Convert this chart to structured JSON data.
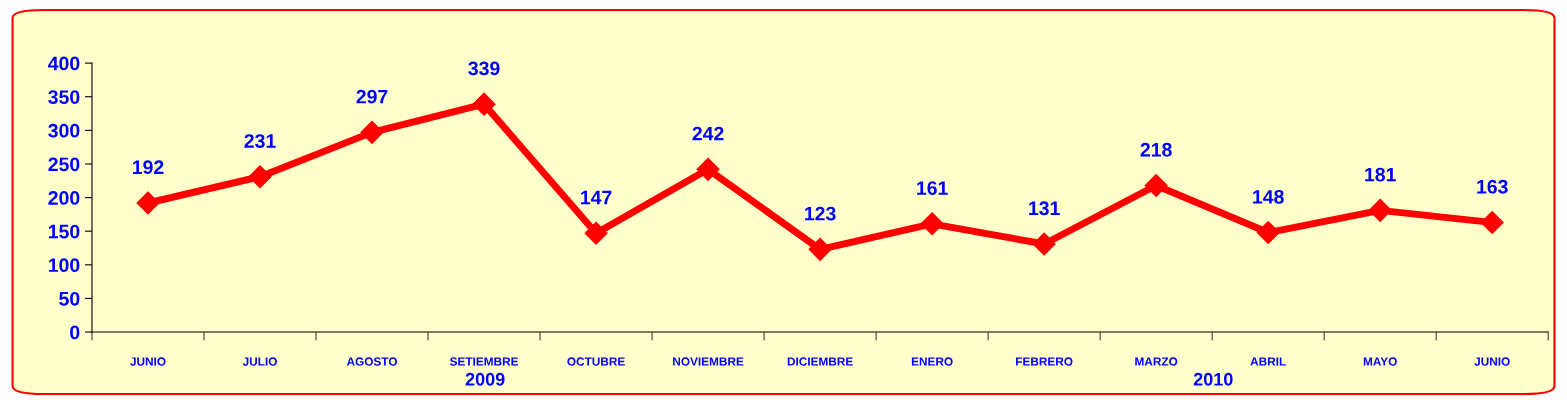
{
  "chart_data": {
    "type": "line",
    "categories": [
      "JUNIO",
      "JULIO",
      "AGOSTO",
      "SETIEMBRE",
      "OCTUBRE",
      "NOVIEMBRE",
      "DICIEMBRE",
      "ENERO",
      "FEBRERO",
      "MARZO",
      "ABRIL",
      "MAYO",
      "JUNIO"
    ],
    "series": [
      {
        "color": "#ff0000",
        "values": [
          192,
          231,
          297,
          339,
          147,
          242,
          123,
          161,
          131,
          218,
          148,
          181,
          163
        ]
      }
    ],
    "ylim": [
      0,
      400
    ],
    "yticks": [
      0,
      50,
      100,
      150,
      200,
      250,
      300,
      350,
      400
    ],
    "marker": "diamond",
    "line_style": "solid",
    "grid": false,
    "legend": false,
    "data_labels": true,
    "annotations": [
      "2009",
      "2010"
    ]
  }
}
